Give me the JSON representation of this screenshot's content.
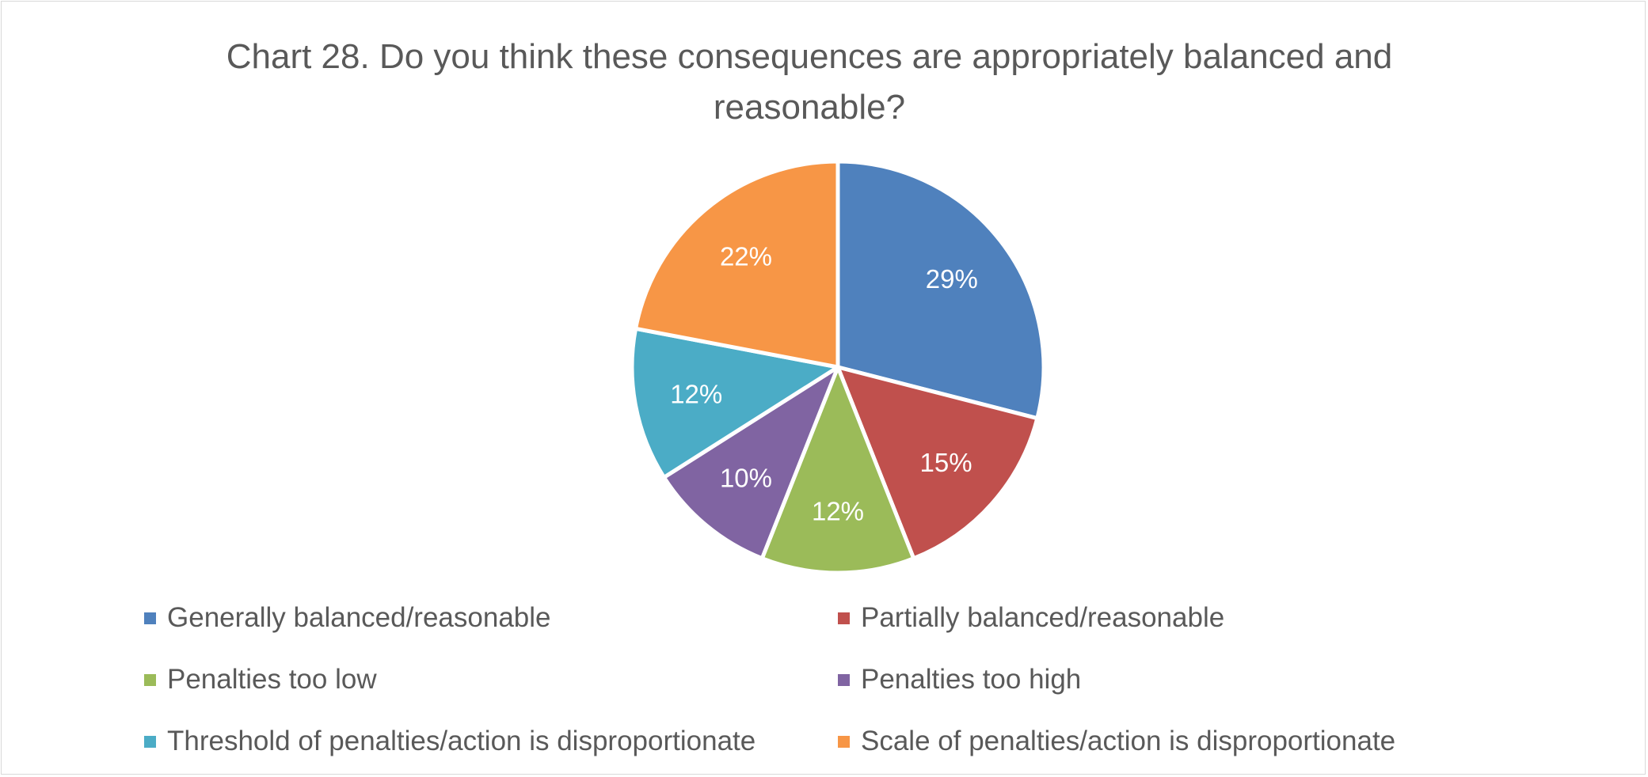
{
  "chart_data": {
    "type": "pie",
    "title": "Chart 28. Do you think these consequences are appropriately balanced and reasonable?",
    "legend_position": "bottom",
    "slices": [
      {
        "label": "Generally balanced/reasonable",
        "value": 29,
        "display": "29%",
        "color": "#4F81BD"
      },
      {
        "label": "Partially balanced/reasonable",
        "value": 15,
        "display": "15%",
        "color": "#C0504D"
      },
      {
        "label": "Penalties too low",
        "value": 12,
        "display": "12%",
        "color": "#9BBB59"
      },
      {
        "label": "Penalties too high",
        "value": 10,
        "display": "10%",
        "color": "#8064A2"
      },
      {
        "label": "Threshold of penalties/action is disproportionate",
        "value": 12,
        "display": "12%",
        "color": "#4BACC6"
      },
      {
        "label": "Scale of penalties/action is disproportionate",
        "value": 22,
        "display": "22%",
        "color": "#F79646"
      }
    ]
  }
}
